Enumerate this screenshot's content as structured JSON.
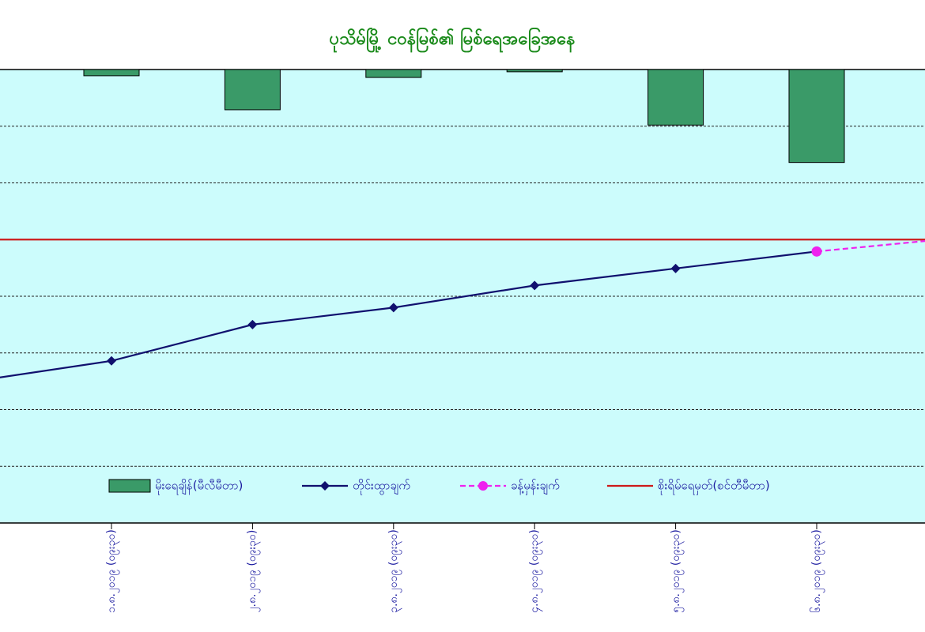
{
  "chart_data": {
    "type": "combo",
    "title": "ပုသိမ်မြို့ ငဝန်မြစ်၏ မြစ်ရေအခြေအနေ",
    "categories": [
      null,
      "၁.၈.၂၀၁၉ (၀၉း၃၀)",
      "၂.၈.၂၀၁၉ (၀၉း၃၀)",
      "၃.၈.၂၀၁၉ (၀၉း၃၀)",
      "၄.၈.၂၀၁၉ (၀၉း၃၀)",
      "၅.၈.၂၀၁၉ (၀၉း၃၀)",
      "၆.၈.၂၀၁၉ (၀၉း၃၀)",
      null
    ],
    "ylim": [
      0,
      8
    ],
    "y2lim": [
      0,
      8
    ],
    "y2_inverted": true,
    "grid": true,
    "series": [
      {
        "name": "မိုးရေချိန်(မီလီမီတာ)",
        "type": "bar",
        "axis": "y2",
        "color": "#3a9a68",
        "values": [
          null,
          0.11,
          0.71,
          0.14,
          0.04,
          0.98,
          1.64,
          null
        ]
      },
      {
        "name": "တိုင်းထွာချက်",
        "type": "line",
        "color": "#10106e",
        "marker": "diamond",
        "values": [
          2.49,
          2.86,
          3.5,
          3.8,
          4.19,
          4.49,
          4.79,
          null
        ]
      },
      {
        "name": "ခန့်မှန်းချက်",
        "type": "line",
        "color": "#ee22ee",
        "dashed": true,
        "marker": "circle",
        "values": [
          null,
          null,
          null,
          null,
          null,
          null,
          4.79,
          5.03
        ]
      },
      {
        "name": "စိုးရိမ်ရေမှတ်(စင်တီမီတာ)",
        "type": "line",
        "color": "#cc1a1a",
        "values": [
          5.0,
          5.0,
          5.0,
          5.0,
          5.0,
          5.0,
          5.0,
          5.0
        ]
      }
    ]
  }
}
